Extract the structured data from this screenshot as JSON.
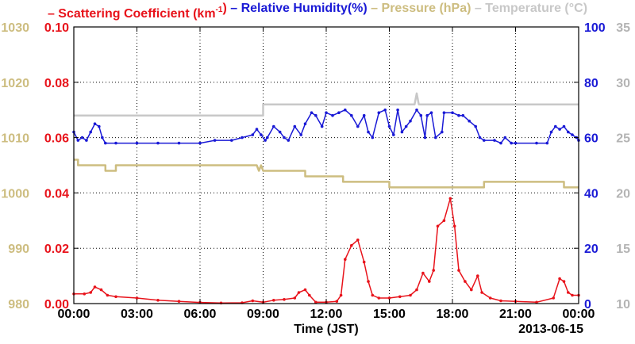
{
  "chart_data": {
    "type": "line",
    "title": "",
    "legend": [
      {
        "label": "Scattering Coefficient (km",
        "sup": "-1",
        "suffix": ")",
        "color": "#e8131b"
      },
      {
        "label": "Relative Humidity(%)",
        "color": "#1a1ad6"
      },
      {
        "label": "Pressure (hPa)",
        "color": "#cdbd80"
      },
      {
        "label": "Temperature (",
        "deg": "°",
        "suffix": "C)",
        "color": "#c8c8c8"
      }
    ],
    "xlabel": "Time (JST)",
    "date_label": "2013-06-15",
    "x_ticks": [
      "00:00",
      "03:00",
      "06:00",
      "09:00",
      "12:00",
      "15:00",
      "18:00",
      "21:00",
      "00:00"
    ],
    "x_range_hours": [
      0,
      24
    ],
    "grid": true,
    "axes": {
      "scattering": {
        "range": [
          0,
          0.1
        ],
        "ticks": [
          "0.00",
          "0.02",
          "0.04",
          "0.06",
          "0.08",
          "0.10"
        ],
        "color": "#e8131b",
        "side": "left-inner"
      },
      "pressure": {
        "range": [
          980,
          1030
        ],
        "ticks": [
          "980",
          "990",
          "1000",
          "1010",
          "1020",
          "1030"
        ],
        "color": "#cdbd80",
        "side": "left-outer"
      },
      "humidity": {
        "range": [
          0,
          100
        ],
        "ticks": [
          "0",
          "20",
          "40",
          "60",
          "80",
          "100"
        ],
        "color": "#1a1ad6",
        "side": "right-inner"
      },
      "temperature": {
        "range": [
          10,
          35
        ],
        "ticks": [
          "10",
          "15",
          "20",
          "25",
          "30",
          "35"
        ],
        "color": "#b4b4b4",
        "side": "right-outer"
      }
    },
    "series": [
      {
        "key": "temperature",
        "axis": "temperature",
        "color": "#c8c8c8",
        "markers": false,
        "step": true,
        "points": [
          [
            0,
            27
          ],
          [
            9,
            27
          ],
          [
            9,
            28
          ],
          [
            16.2,
            28
          ],
          [
            16.3,
            29
          ],
          [
            16.4,
            28
          ],
          [
            24,
            28
          ]
        ]
      },
      {
        "key": "pressure",
        "axis": "pressure",
        "color": "#cdbd80",
        "markers": false,
        "step": true,
        "points": [
          [
            0,
            1006
          ],
          [
            0.2,
            1006
          ],
          [
            0.2,
            1005
          ],
          [
            1.5,
            1005
          ],
          [
            1.5,
            1004
          ],
          [
            2,
            1004
          ],
          [
            2,
            1005
          ],
          [
            8.7,
            1005
          ],
          [
            8.8,
            1004
          ],
          [
            8.9,
            1005
          ],
          [
            9,
            1004
          ],
          [
            11,
            1004
          ],
          [
            11,
            1003
          ],
          [
            12.8,
            1003
          ],
          [
            12.8,
            1002
          ],
          [
            15,
            1002
          ],
          [
            15,
            1001
          ],
          [
            19.5,
            1001
          ],
          [
            19.5,
            1002
          ],
          [
            23.3,
            1002
          ],
          [
            23.3,
            1001
          ],
          [
            24,
            1001
          ]
        ]
      },
      {
        "key": "humidity",
        "axis": "humidity",
        "color": "#1a1ad6",
        "markers": true,
        "points": [
          [
            0,
            62
          ],
          [
            0.2,
            59
          ],
          [
            0.4,
            60
          ],
          [
            0.6,
            59
          ],
          [
            0.8,
            62
          ],
          [
            1,
            65
          ],
          [
            1.2,
            64
          ],
          [
            1.35,
            60
          ],
          [
            1.5,
            58
          ],
          [
            2,
            58
          ],
          [
            3,
            58
          ],
          [
            4,
            58
          ],
          [
            5,
            58
          ],
          [
            6,
            58
          ],
          [
            6.7,
            59
          ],
          [
            7.5,
            59
          ],
          [
            8,
            60
          ],
          [
            8.5,
            61
          ],
          [
            8.7,
            63
          ],
          [
            8.9,
            61
          ],
          [
            9.1,
            59
          ],
          [
            9.2,
            60
          ],
          [
            9.5,
            64
          ],
          [
            9.8,
            62
          ],
          [
            10,
            60
          ],
          [
            10.2,
            59
          ],
          [
            10.5,
            64
          ],
          [
            10.8,
            61
          ],
          [
            11,
            65
          ],
          [
            11.3,
            69
          ],
          [
            11.5,
            68
          ],
          [
            11.8,
            64
          ],
          [
            12,
            69
          ],
          [
            12.3,
            68
          ],
          [
            12.6,
            69
          ],
          [
            12.9,
            70
          ],
          [
            13.2,
            68
          ],
          [
            13.5,
            64
          ],
          [
            13.8,
            68
          ],
          [
            14,
            62
          ],
          [
            14.2,
            60
          ],
          [
            14.5,
            69
          ],
          [
            14.8,
            70
          ],
          [
            15,
            64
          ],
          [
            15.2,
            61
          ],
          [
            15.4,
            70
          ],
          [
            15.6,
            62
          ],
          [
            15.8,
            64
          ],
          [
            16,
            66
          ],
          [
            16.3,
            70
          ],
          [
            16.5,
            68
          ],
          [
            16.7,
            60
          ],
          [
            16.8,
            68
          ],
          [
            17,
            69
          ],
          [
            17.2,
            60
          ],
          [
            17.5,
            62
          ],
          [
            17.6,
            69
          ],
          [
            18,
            69
          ],
          [
            18.3,
            68
          ],
          [
            18.5,
            68
          ],
          [
            18.8,
            66
          ],
          [
            19.1,
            64
          ],
          [
            19.3,
            60
          ],
          [
            19.5,
            59
          ],
          [
            20,
            59
          ],
          [
            20.3,
            58
          ],
          [
            20.5,
            60
          ],
          [
            20.8,
            58
          ],
          [
            21,
            58
          ],
          [
            22,
            58
          ],
          [
            22.5,
            58
          ],
          [
            22.7,
            62
          ],
          [
            22.9,
            64
          ],
          [
            23.1,
            63
          ],
          [
            23.3,
            64
          ],
          [
            23.5,
            62
          ],
          [
            23.7,
            61
          ],
          [
            23.9,
            60
          ],
          [
            24,
            59
          ]
        ]
      },
      {
        "key": "scattering",
        "axis": "scattering",
        "color": "#e8131b",
        "markers": true,
        "points": [
          [
            0,
            0.0035
          ],
          [
            0.5,
            0.0035
          ],
          [
            0.8,
            0.004
          ],
          [
            1,
            0.006
          ],
          [
            1.3,
            0.005
          ],
          [
            1.6,
            0.003
          ],
          [
            2,
            0.0025
          ],
          [
            3,
            0.002
          ],
          [
            4,
            0.0012
          ],
          [
            5,
            0.0008
          ],
          [
            6,
            0.0004
          ],
          [
            7,
            0.0002
          ],
          [
            8,
            0.0003
          ],
          [
            8.5,
            0.001
          ],
          [
            9,
            0.0005
          ],
          [
            9.5,
            0.0012
          ],
          [
            10,
            0.0015
          ],
          [
            10.5,
            0.002
          ],
          [
            10.7,
            0.004
          ],
          [
            11,
            0.005
          ],
          [
            11.2,
            0.003
          ],
          [
            11.5,
            0.0005
          ],
          [
            12,
            0.0005
          ],
          [
            12.5,
            0.0008
          ],
          [
            12.7,
            0.003
          ],
          [
            12.9,
            0.016
          ],
          [
            13.2,
            0.021
          ],
          [
            13.5,
            0.023
          ],
          [
            13.8,
            0.015
          ],
          [
            14,
            0.008
          ],
          [
            14.2,
            0.003
          ],
          [
            14.5,
            0.002
          ],
          [
            15,
            0.002
          ],
          [
            15.5,
            0.0025
          ],
          [
            16,
            0.003
          ],
          [
            16.3,
            0.005
          ],
          [
            16.6,
            0.011
          ],
          [
            16.9,
            0.008
          ],
          [
            17.1,
            0.012
          ],
          [
            17.3,
            0.028
          ],
          [
            17.6,
            0.03
          ],
          [
            17.9,
            0.038
          ],
          [
            18.1,
            0.028
          ],
          [
            18.3,
            0.012
          ],
          [
            18.6,
            0.008
          ],
          [
            18.9,
            0.005
          ],
          [
            19.2,
            0.01
          ],
          [
            19.4,
            0.004
          ],
          [
            19.8,
            0.002
          ],
          [
            20.3,
            0.001
          ],
          [
            21,
            0.0008
          ],
          [
            22,
            0.0005
          ],
          [
            22.8,
            0.002
          ],
          [
            23.1,
            0.009
          ],
          [
            23.3,
            0.008
          ],
          [
            23.5,
            0.004
          ],
          [
            23.7,
            0.003
          ],
          [
            24,
            0.003
          ]
        ]
      }
    ]
  }
}
